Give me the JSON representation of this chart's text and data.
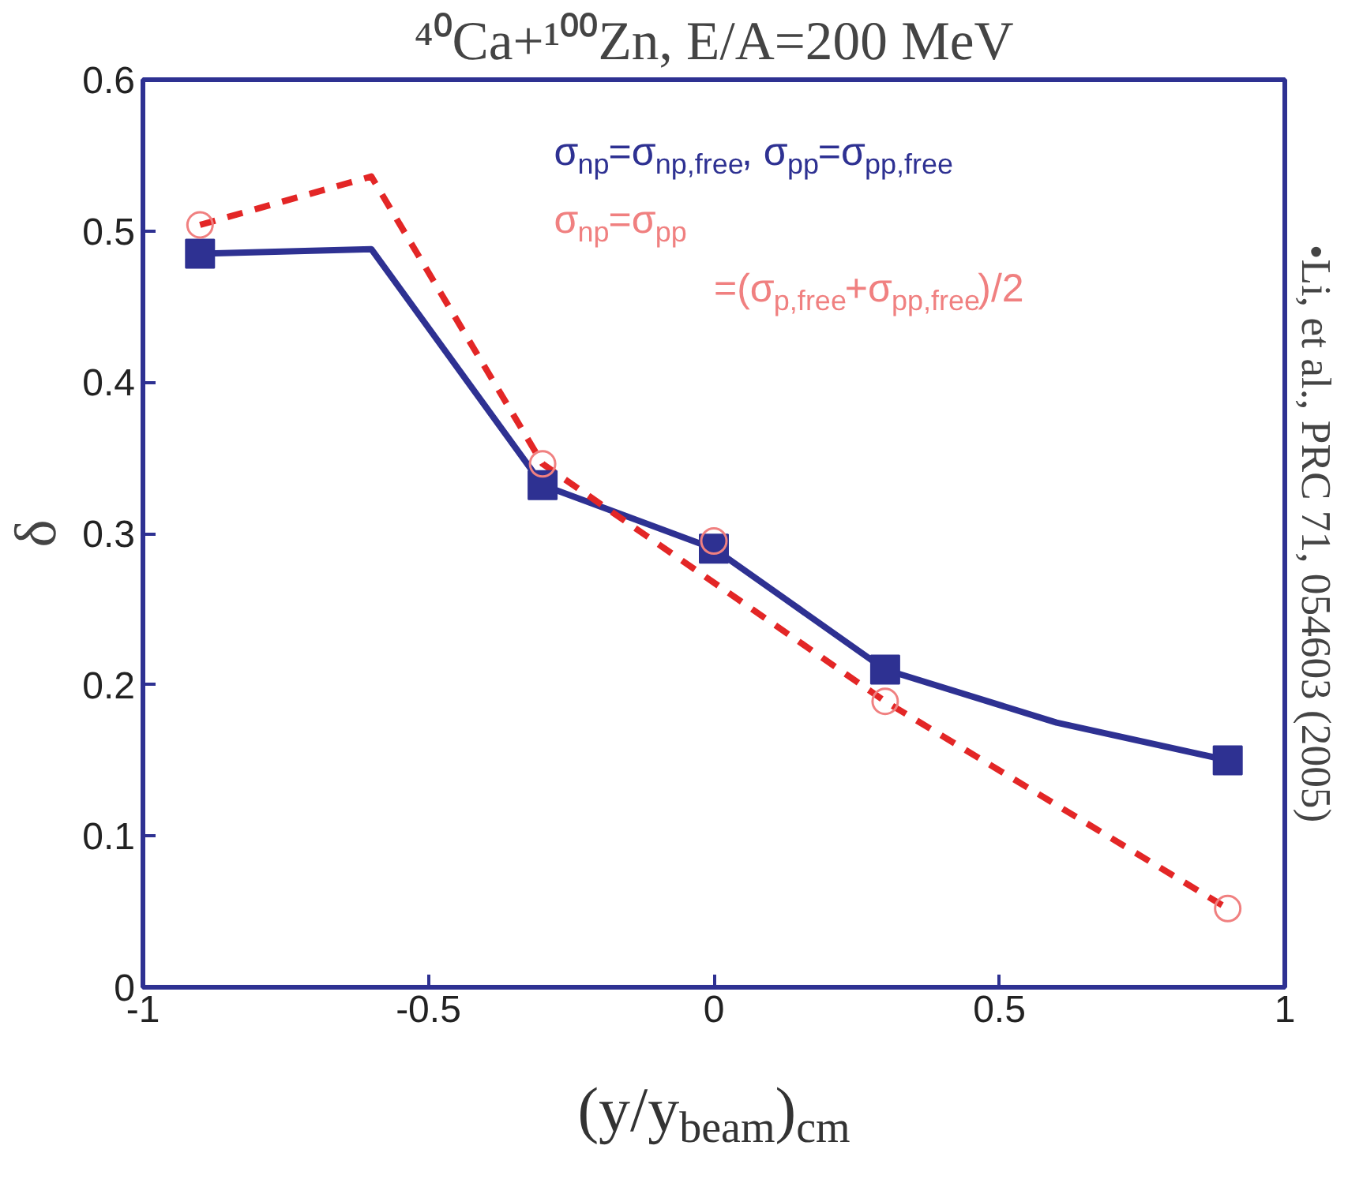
{
  "chart_data": {
    "type": "line",
    "title": "⁴⁰Ca+¹⁰⁰Zn, E/A=200 MeV",
    "xlabel": "(y/y$_{beam}$)$_{cm}$",
    "ylabel": "δ",
    "annotations": [
      "•Li, et al., PRC 71, 054603 (2005)"
    ],
    "xlim": [
      -1,
      1
    ],
    "ylim": [
      0,
      0.6
    ],
    "xticks": [
      -1,
      -0.5,
      0,
      0.5,
      1
    ],
    "yticks": [
      0,
      0.1,
      0.2,
      0.3,
      0.4,
      0.5,
      0.6
    ],
    "grid": false,
    "legend": "top right",
    "series": [
      {
        "color": "#2e3192",
        "marker": "none",
        "line_style": "solid",
        "x": [
          -0.9,
          -0.6,
          -0.3,
          0,
          0.3,
          0.6,
          0.9
        ],
        "values": [
          0.485,
          0.488,
          0.332,
          0.29,
          0.21,
          0.175,
          0.15
        ]
      },
      {
        "color": "#e32626",
        "marker": "none",
        "line_style": "dashed",
        "x": [
          -0.9,
          -0.6,
          -0.3,
          0,
          0.3,
          0.6,
          0.9
        ],
        "values": [
          0.504,
          0.536,
          0.346,
          null,
          0.189,
          null,
          0.052
        ]
      },
      {
        "type": "scatter",
        "name": "σ$_{np}$=σ$_{np,free}$, σ$_{pp}$=σ$_{pp,free}$",
        "color": "#2e3192",
        "marker": "square",
        "x": [
          -0.9,
          -0.3,
          0,
          0.3,
          0.9
        ],
        "values": [
          0.485,
          0.332,
          0.29,
          0.21,
          0.15
        ]
      },
      {
        "type": "scatter",
        "name": "σ$_{np}$=σ$_{pp}$\n=(σ$_{p,free}$+σ$_{pp,free}$)/2",
        "color": "#f08080",
        "marker": "circle_open",
        "x": [
          -0.9,
          -0.3,
          0,
          0.3,
          0.9
        ],
        "values": [
          0.504,
          0.346,
          0.295,
          0.189,
          0.052
        ]
      }
    ]
  }
}
